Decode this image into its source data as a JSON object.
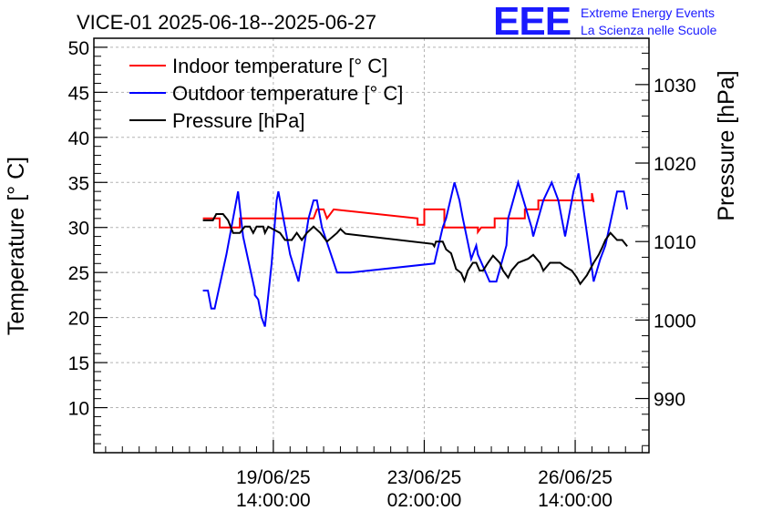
{
  "chart_data": {
    "type": "line",
    "title": "VICE-01 2025-06-18--2025-06-27",
    "ylabel": "Temperature [° C]",
    "y2label": "Pressure [hPa]",
    "ylim": [
      5,
      51
    ],
    "y2lim": [
      983.1,
      1035.9
    ],
    "yticks": [
      10,
      15,
      20,
      25,
      30,
      35,
      40,
      45,
      50
    ],
    "y2ticks": [
      990,
      1000,
      1010,
      1020,
      1030
    ],
    "xlim": [
      -5.35,
      11.2
    ],
    "xticks": [
      {
        "pos": 0,
        "date": "19/06/25",
        "time": "14:00:00"
      },
      {
        "pos": 4.5,
        "date": "23/06/25",
        "time": "02:00:00"
      },
      {
        "pos": 9,
        "date": "26/06/25",
        "time": "14:00:00"
      }
    ],
    "grid": true,
    "legend": "top-left",
    "series": [
      {
        "name": "Indoor temperature [° C]",
        "axis": "left",
        "color": "#ff0000",
        "points": [
          [
            -2.1,
            31
          ],
          [
            -1.6,
            31
          ],
          [
            -1.6,
            30
          ],
          [
            -1,
            30
          ],
          [
            -1,
            31
          ],
          [
            0,
            31
          ],
          [
            1.2,
            31
          ],
          [
            1.3,
            32
          ],
          [
            1.5,
            32
          ],
          [
            1.6,
            31
          ],
          [
            1.8,
            32
          ],
          [
            4.3,
            31
          ],
          [
            4.3,
            30.3
          ],
          [
            4.5,
            30.3
          ],
          [
            4.5,
            32
          ],
          [
            5.1,
            32
          ],
          [
            5.1,
            30
          ],
          [
            6.1,
            30
          ],
          [
            6.1,
            29.5
          ],
          [
            6.2,
            30
          ],
          [
            6.6,
            30
          ],
          [
            6.6,
            31
          ],
          [
            7.5,
            31
          ],
          [
            7.5,
            32
          ],
          [
            7.9,
            32
          ],
          [
            7.9,
            33
          ],
          [
            9.5,
            33
          ],
          [
            9.5,
            33.8
          ],
          [
            9.55,
            32.8
          ]
        ]
      },
      {
        "name": "Outdoor temperature [° C]",
        "axis": "left",
        "color": "#0000ff",
        "points": [
          [
            -2.1,
            23
          ],
          [
            -1.95,
            23
          ],
          [
            -1.85,
            21
          ],
          [
            -1.75,
            21
          ],
          [
            -1.4,
            27
          ],
          [
            -1.05,
            34
          ],
          [
            -0.9,
            29
          ],
          [
            -0.55,
            23
          ],
          [
            -0.55,
            22.5
          ],
          [
            -0.45,
            22
          ],
          [
            -0.35,
            20
          ],
          [
            -0.25,
            19
          ],
          [
            -0.05,
            26
          ],
          [
            0.1,
            33
          ],
          [
            0.15,
            34
          ],
          [
            0.2,
            33
          ],
          [
            0.5,
            27
          ],
          [
            0.75,
            24
          ],
          [
            1.05,
            31
          ],
          [
            1.2,
            33
          ],
          [
            1.3,
            33
          ],
          [
            1.45,
            30
          ],
          [
            1.9,
            25
          ],
          [
            2.3,
            25
          ],
          [
            4.8,
            26
          ],
          [
            5.05,
            30
          ],
          [
            5.15,
            31
          ],
          [
            5.4,
            35
          ],
          [
            5.55,
            33
          ],
          [
            5.65,
            31
          ],
          [
            5.9,
            26.5
          ],
          [
            6.05,
            28
          ],
          [
            6.1,
            27
          ],
          [
            6.45,
            24
          ],
          [
            6.65,
            24
          ],
          [
            6.95,
            28
          ],
          [
            7,
            31
          ],
          [
            7.3,
            35
          ],
          [
            7.7,
            30
          ],
          [
            7.75,
            29
          ],
          [
            8.05,
            33
          ],
          [
            8.3,
            35
          ],
          [
            8.5,
            33
          ],
          [
            8.7,
            29
          ],
          [
            8.95,
            34
          ],
          [
            9.1,
            36
          ],
          [
            9.4,
            28
          ],
          [
            9.55,
            24
          ],
          [
            9.75,
            26.5
          ],
          [
            9.9,
            28
          ],
          [
            10.25,
            34
          ],
          [
            10.45,
            34
          ],
          [
            10.55,
            32
          ]
        ]
      },
      {
        "name": "Pressure [hPa]",
        "axis": "right",
        "color": "#000000",
        "points": [
          [
            -2.1,
            1012.7
          ],
          [
            -1.8,
            1012.7
          ],
          [
            -1.7,
            1013.5
          ],
          [
            -1.5,
            1013.5
          ],
          [
            -1.35,
            1012.7
          ],
          [
            -1.2,
            1011.1
          ],
          [
            -1,
            1011.1
          ],
          [
            -0.85,
            1011.9
          ],
          [
            -0.7,
            1011.9
          ],
          [
            -0.6,
            1011.1
          ],
          [
            -0.5,
            1011.9
          ],
          [
            -0.3,
            1011.9
          ],
          [
            -0.25,
            1011.1
          ],
          [
            -0.15,
            1011.9
          ],
          [
            0.2,
            1011.1
          ],
          [
            0.35,
            1010.2
          ],
          [
            0.55,
            1010.2
          ],
          [
            0.7,
            1011.1
          ],
          [
            0.85,
            1010.2
          ],
          [
            1,
            1011.1
          ],
          [
            1.2,
            1011.9
          ],
          [
            1.4,
            1011.1
          ],
          [
            1.6,
            1010
          ],
          [
            1.9,
            1011.1
          ],
          [
            2,
            1011.6
          ],
          [
            2.15,
            1011
          ],
          [
            4.75,
            1009.7
          ],
          [
            4.8,
            1009.4
          ],
          [
            4.85,
            1010
          ],
          [
            5.05,
            1010
          ],
          [
            5.15,
            1009
          ],
          [
            5.3,
            1008.5
          ],
          [
            5.45,
            1006.5
          ],
          [
            5.6,
            1006
          ],
          [
            5.7,
            1005
          ],
          [
            5.8,
            1006.3
          ],
          [
            5.95,
            1007.3
          ],
          [
            6.05,
            1007.3
          ],
          [
            6.15,
            1006.3
          ],
          [
            6.25,
            1006.3
          ],
          [
            6.4,
            1007.3
          ],
          [
            6.55,
            1008.2
          ],
          [
            6.75,
            1007.3
          ],
          [
            6.85,
            1006.3
          ],
          [
            7,
            1005.4
          ],
          [
            7.1,
            1006.3
          ],
          [
            7.3,
            1007.3
          ],
          [
            7.6,
            1007.8
          ],
          [
            7.75,
            1008.3
          ],
          [
            7.95,
            1007.3
          ],
          [
            8.05,
            1006.3
          ],
          [
            8.25,
            1007.3
          ],
          [
            8.4,
            1007.3
          ],
          [
            8.55,
            1007.3
          ],
          [
            8.7,
            1006.8
          ],
          [
            8.9,
            1006.3
          ],
          [
            9.05,
            1005.4
          ],
          [
            9.15,
            1004.6
          ],
          [
            9.35,
            1005.7
          ],
          [
            9.55,
            1007.3
          ],
          [
            9.7,
            1008.3
          ],
          [
            9.8,
            1009.2
          ],
          [
            9.9,
            1010.2
          ],
          [
            10.05,
            1011.1
          ],
          [
            10.25,
            1010.2
          ],
          [
            10.4,
            1010.2
          ],
          [
            10.55,
            1009.4
          ]
        ]
      }
    ]
  },
  "logo": {
    "text": "EEE",
    "line1": "Extreme Energy Events",
    "line2": "La Scienza nelle Scuole",
    "color": "#1a1aff"
  }
}
